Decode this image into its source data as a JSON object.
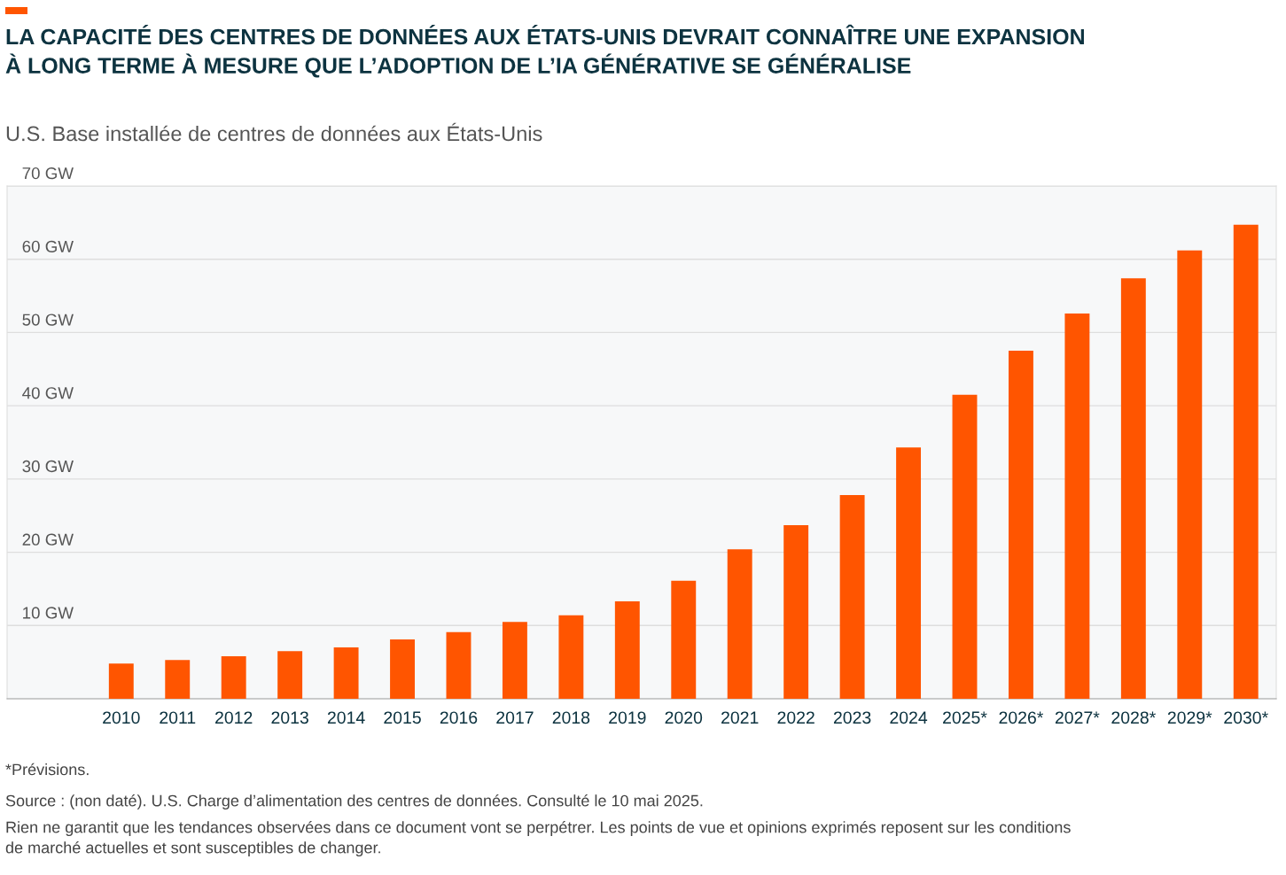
{
  "chart_data": {
    "type": "bar",
    "title": "LA CAPACITÉ DES CENTRES DE DONNÉES AUX ÉTATS-UNIS DEVRAIT CONNAÎTRE UNE EXPANSION\nÀ LONG TERME À MESURE QUE L’ADOPTION DE L’IA GÉNÉRATIVE SE GÉNÉRALISE",
    "subtitle": "U.S. Base installée de centres de données aux États-Unis",
    "categories": [
      "2010",
      "2011",
      "2012",
      "2013",
      "2014",
      "2015",
      "2016",
      "2017",
      "2018",
      "2019",
      "2020",
      "2021",
      "2022",
      "2023",
      "2024",
      "2025*",
      "2026*",
      "2027*",
      "2028*",
      "2029*",
      "2030*"
    ],
    "values": [
      4.8,
      5.3,
      5.8,
      6.5,
      7.0,
      8.1,
      9.1,
      10.5,
      11.4,
      13.3,
      16.1,
      20.4,
      23.7,
      27.8,
      34.3,
      41.5,
      47.5,
      52.6,
      57.4,
      61.2,
      64.7
    ],
    "color": "#ff5500",
    "ylim": [
      0,
      70
    ],
    "yticks": [
      {
        "value": 10,
        "label": "10 GW"
      },
      {
        "value": 20,
        "label": "20 GW"
      },
      {
        "value": 30,
        "label": "30 GW"
      },
      {
        "value": 40,
        "label": "40 GW"
      },
      {
        "value": 50,
        "label": "50 GW"
      },
      {
        "value": 60,
        "label": "60 GW"
      },
      {
        "value": 70,
        "label": "70 GW"
      }
    ],
    "grid": "y",
    "annotations": [
      "*Prévisions.",
      "Source : (non daté). U.S. Charge d’alimentation des centres de données. Consulté le 10 mai 2025.",
      "Rien ne garantit que les tendances observées dans ce document vont se perpétrer. Les points de vue et opinions exprimés reposent sur les conditions\nde marché actuelles et sont susceptibles de changer."
    ]
  }
}
